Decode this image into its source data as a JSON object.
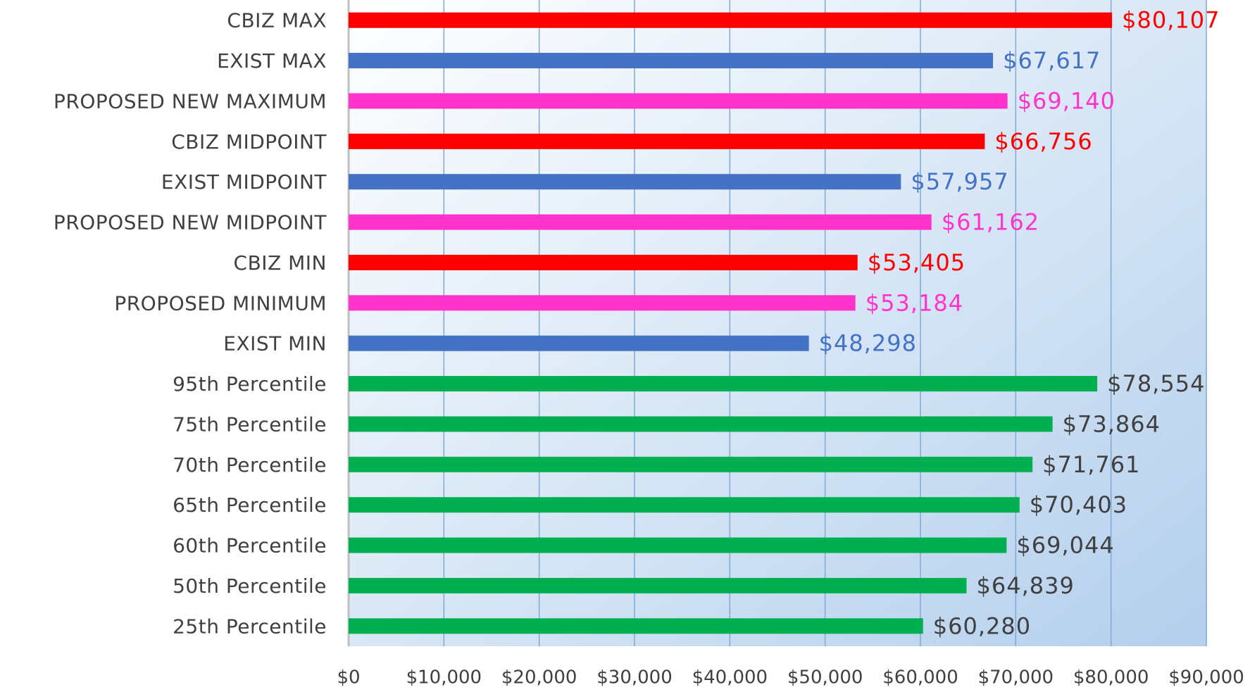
{
  "chart_data": {
    "type": "barh",
    "categories": [
      "CBIZ MAX",
      "EXIST MAX",
      "PROPOSED NEW MAXIMUM",
      "CBIZ MIDPOINT",
      "EXIST MIDPOINT",
      "PROPOSED NEW MIDPOINT",
      "CBIZ MIN",
      "PROPOSED MINIMUM",
      "EXIST MIN",
      "95th Percentile",
      "75th Percentile",
      "70th Percentile",
      "65th Percentile",
      "60th Percentile",
      "50th Percentile",
      "25th Percentile"
    ],
    "values": [
      80107,
      67617,
      69140,
      66756,
      57957,
      61162,
      53405,
      53184,
      48298,
      78554,
      73864,
      71761,
      70403,
      69044,
      64839,
      60280
    ],
    "value_labels": [
      "$80,107",
      "$67,617",
      "$69,140",
      "$66,756",
      "$57,957",
      "$61,162",
      "$53,405",
      "$53,184",
      "$48,298",
      "$78,554",
      "$73,864",
      "$71,761",
      "$70,403",
      "$69,044",
      "$64,839",
      "$60,280"
    ],
    "colors": [
      "#ff0000",
      "#4472c4",
      "#ff33cc",
      "#ff0000",
      "#4472c4",
      "#ff33cc",
      "#ff0000",
      "#ff33cc",
      "#4472c4",
      "#00b050",
      "#00b050",
      "#00b050",
      "#00b050",
      "#00b050",
      "#00b050",
      "#00b050"
    ],
    "label_colors": [
      "#ff0000",
      "#4472c4",
      "#ff33cc",
      "#ff0000",
      "#4472c4",
      "#ff33cc",
      "#ff0000",
      "#ff33cc",
      "#4472c4",
      "#404040",
      "#404040",
      "#404040",
      "#404040",
      "#404040",
      "#404040",
      "#404040"
    ],
    "xlim": [
      0,
      90000
    ],
    "xticks": [
      {
        "value": 0,
        "label": "$0"
      },
      {
        "value": 10000,
        "label": "$10,000"
      },
      {
        "value": 20000,
        "label": "$20,000"
      },
      {
        "value": 30000,
        "label": "$30,000"
      },
      {
        "value": 40000,
        "label": "$40,000"
      },
      {
        "value": 50000,
        "label": "$50,000"
      },
      {
        "value": 60000,
        "label": "$60,000"
      },
      {
        "value": 70000,
        "label": "$70,000"
      },
      {
        "value": 80000,
        "label": "$80,000"
      },
      {
        "value": 90000,
        "label": "$90,000"
      }
    ],
    "grid": true
  }
}
